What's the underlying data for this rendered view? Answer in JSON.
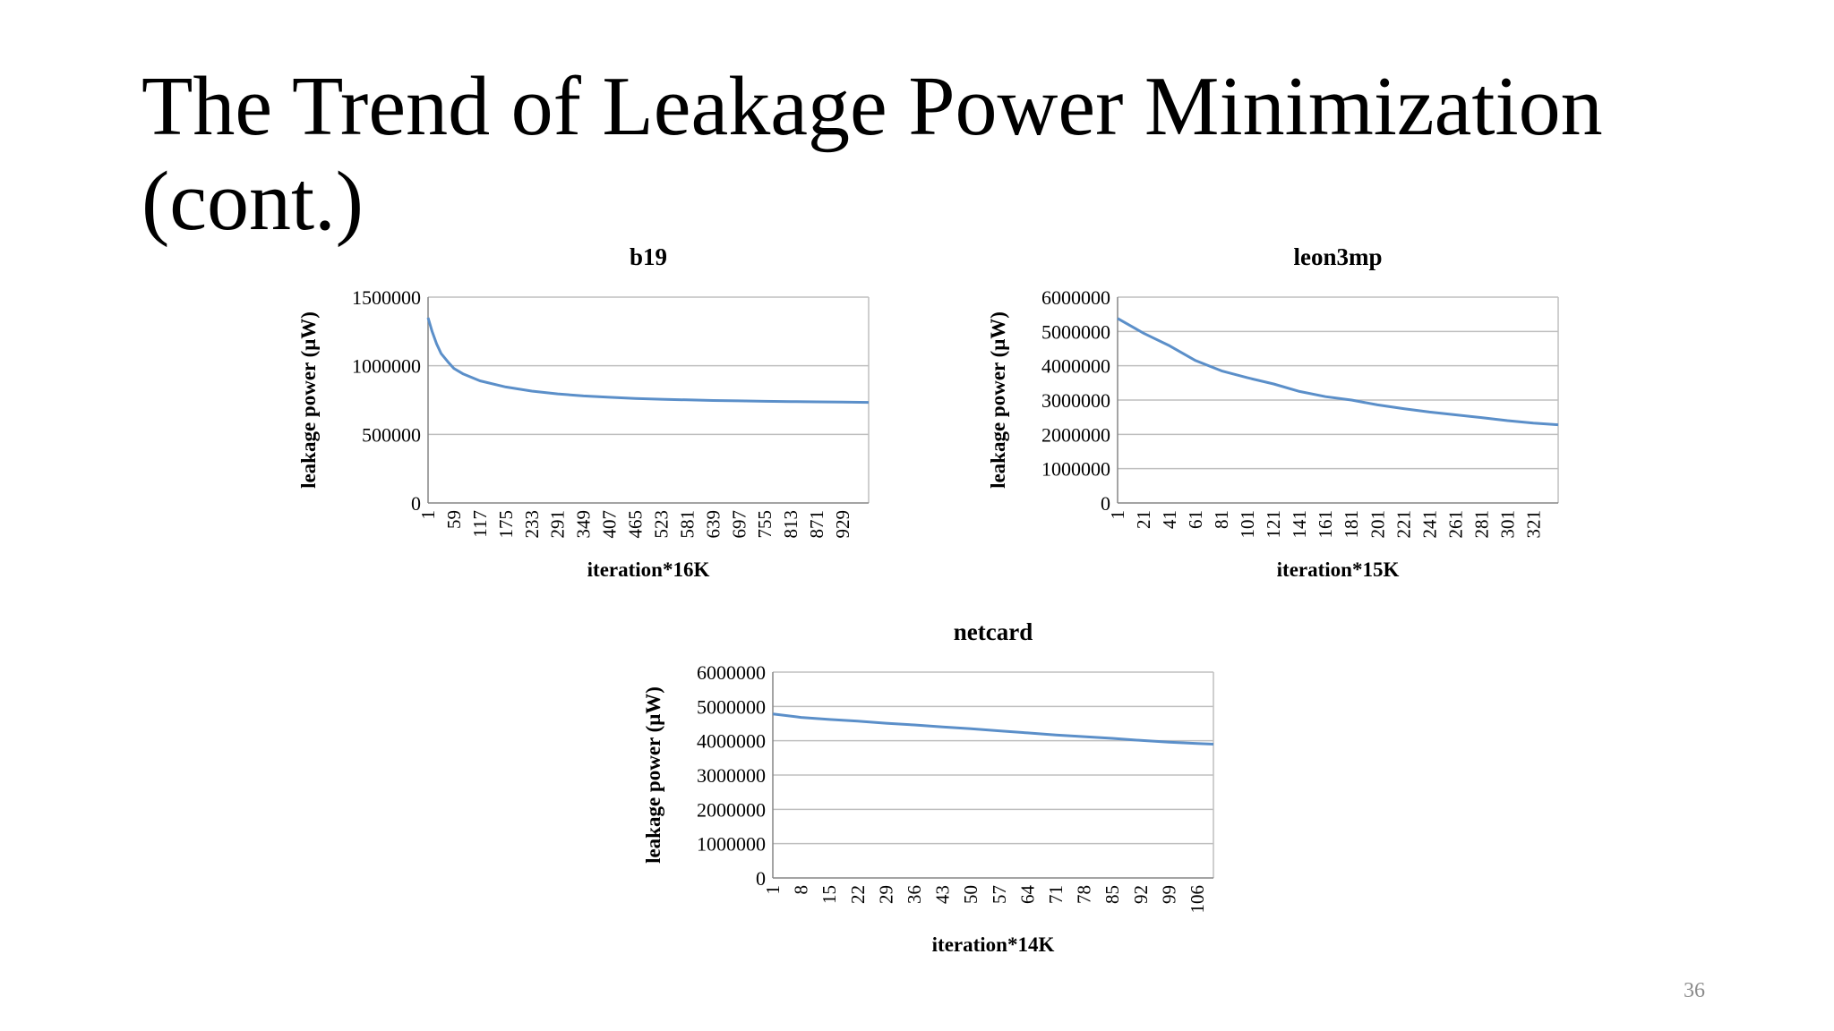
{
  "slide": {
    "title_line1": "The Trend of Leakage Power Minimization",
    "title_line2": "(cont.)",
    "page_number": "36"
  },
  "colors": {
    "line": "#5b8fc9",
    "grid": "#bfbfbf",
    "axis": "#868686"
  },
  "chart_data": [
    {
      "type": "line",
      "title": "b19",
      "xlabel": "iteration*16K",
      "ylabel": "leakage power (μW)",
      "ylim": [
        0,
        1500000
      ],
      "yticks": [
        0,
        500000,
        1000000,
        1500000
      ],
      "grid": true,
      "legend": "none",
      "x_categories": [
        "1",
        "59",
        "117",
        "175",
        "233",
        "291",
        "349",
        "407",
        "465",
        "523",
        "581",
        "639",
        "697",
        "755",
        "813",
        "871",
        "929"
      ],
      "xlim": [
        1,
        987
      ],
      "series": [
        {
          "x": [
            1,
            10,
            20,
            30,
            45,
            59,
            80,
            117,
            175,
            233,
            291,
            349,
            407,
            465,
            523,
            581,
            639,
            697,
            755,
            813,
            871,
            929,
            987
          ],
          "y": [
            1350000,
            1250000,
            1160000,
            1090000,
            1030000,
            980000,
            940000,
            890000,
            845000,
            815000,
            795000,
            780000,
            770000,
            762000,
            756000,
            751000,
            747000,
            744000,
            741000,
            739000,
            737000,
            735000,
            733000
          ]
        }
      ]
    },
    {
      "type": "line",
      "title": "leon3mp",
      "xlabel": "iteration*15K",
      "ylabel": "leakage power (μW)",
      "ylim": [
        0,
        6000000
      ],
      "yticks": [
        0,
        1000000,
        2000000,
        3000000,
        4000000,
        5000000,
        6000000
      ],
      "grid": true,
      "legend": "none",
      "x_categories": [
        "1",
        "21",
        "41",
        "61",
        "81",
        "101",
        "121",
        "141",
        "161",
        "181",
        "201",
        "221",
        "241",
        "261",
        "281",
        "301",
        "321"
      ],
      "xlim": [
        1,
        340
      ],
      "series": [
        {
          "x": [
            1,
            21,
            41,
            61,
            81,
            101,
            121,
            141,
            161,
            181,
            201,
            221,
            241,
            261,
            281,
            301,
            321,
            340
          ],
          "y": [
            5380000,
            4950000,
            4580000,
            4150000,
            3850000,
            3650000,
            3470000,
            3250000,
            3100000,
            3000000,
            2860000,
            2750000,
            2650000,
            2570000,
            2490000,
            2400000,
            2330000,
            2280000
          ]
        }
      ]
    },
    {
      "type": "line",
      "title": "netcard",
      "xlabel": "iteration*14K",
      "ylabel": "leakage power (μW)",
      "ylim": [
        0,
        6000000
      ],
      "yticks": [
        0,
        1000000,
        2000000,
        3000000,
        4000000,
        5000000,
        6000000
      ],
      "grid": true,
      "legend": "none",
      "x_categories": [
        "1",
        "8",
        "15",
        "22",
        "29",
        "36",
        "43",
        "50",
        "57",
        "64",
        "71",
        "78",
        "85",
        "92",
        "99",
        "106"
      ],
      "xlim": [
        1,
        110
      ],
      "series": [
        {
          "x": [
            1,
            8,
            15,
            22,
            29,
            36,
            43,
            50,
            57,
            64,
            71,
            78,
            85,
            92,
            99,
            106,
            110
          ],
          "y": [
            4780000,
            4680000,
            4620000,
            4570000,
            4510000,
            4460000,
            4400000,
            4350000,
            4290000,
            4230000,
            4170000,
            4120000,
            4070000,
            4010000,
            3960000,
            3920000,
            3900000
          ]
        }
      ]
    }
  ]
}
